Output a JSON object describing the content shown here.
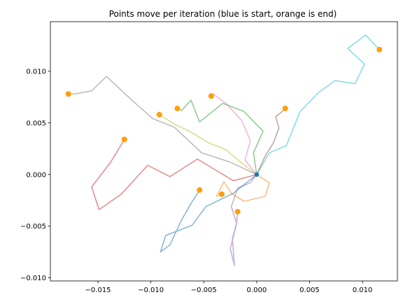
{
  "chart_data": {
    "type": "line",
    "title": "Points move per iteration (blue is start, orange is end)",
    "xlabel": "",
    "ylabel": "",
    "xlim": [
      -0.0195,
      0.0133
    ],
    "ylim": [
      -0.0103,
      0.0148
    ],
    "x_ticks": [
      -0.015,
      -0.01,
      -0.005,
      0.0,
      0.005,
      0.01
    ],
    "x_tick_labels": [
      "−0.015",
      "−0.010",
      "−0.005",
      "0.000",
      "0.005",
      "0.010"
    ],
    "y_ticks": [
      -0.01,
      -0.005,
      0.0,
      0.005,
      0.01
    ],
    "y_tick_labels": [
      "−0.010",
      "−0.005",
      "0.000",
      "0.005",
      "0.010"
    ],
    "grid": false,
    "start_marker_color": "#1f77b4",
    "end_marker_color": "#ff9e0a",
    "series": [
      {
        "color": "#7f7f7f",
        "points": [
          [
            0.0,
            0.0
          ],
          [
            -0.0025,
            0.0012
          ],
          [
            -0.0052,
            0.0021
          ],
          [
            -0.0078,
            0.0046
          ],
          [
            -0.0098,
            0.0054
          ],
          [
            -0.0118,
            0.0072
          ],
          [
            -0.0142,
            0.0095
          ],
          [
            -0.0156,
            0.0081
          ],
          [
            -0.0172,
            0.0078
          ],
          [
            -0.0178,
            0.0078
          ]
        ]
      },
      {
        "color": "#9467bd",
        "points": [
          [
            0.0,
            0.0
          ],
          [
            -0.0006,
            -0.0008
          ],
          [
            -0.0018,
            -0.0013
          ],
          [
            -0.0024,
            -0.0031
          ],
          [
            -0.0019,
            -0.0047
          ],
          [
            -0.0023,
            -0.0062
          ],
          [
            -0.0021,
            -0.0088
          ],
          [
            -0.0025,
            -0.0072
          ],
          [
            -0.0019,
            -0.0048
          ],
          [
            -0.0018,
            -0.0036
          ]
        ]
      },
      {
        "color": "#d62728",
        "points": [
          [
            0.0,
            0.0
          ],
          [
            -0.0022,
            -0.0006
          ],
          [
            -0.0056,
            0.0015
          ],
          [
            -0.0082,
            -0.0002
          ],
          [
            -0.0103,
            0.0009
          ],
          [
            -0.0128,
            -0.0019
          ],
          [
            -0.0149,
            -0.0034
          ],
          [
            -0.0156,
            -0.0012
          ],
          [
            -0.0138,
            0.0012
          ],
          [
            -0.0125,
            0.0034
          ]
        ]
      },
      {
        "color": "#2ca02c",
        "points": [
          [
            0.0,
            0.0
          ],
          [
            -0.0003,
            0.0021
          ],
          [
            0.0006,
            0.0042
          ],
          [
            -0.0012,
            0.0061
          ],
          [
            -0.0032,
            0.0069
          ],
          [
            -0.0054,
            0.0051
          ],
          [
            -0.0062,
            0.0072
          ],
          [
            -0.0071,
            0.0062
          ],
          [
            -0.0075,
            0.0064
          ]
        ]
      },
      {
        "color": "#17becf",
        "points": [
          [
            0.0,
            0.0
          ],
          [
            0.0012,
            0.0021
          ],
          [
            0.0028,
            0.0028
          ],
          [
            0.0041,
            0.0061
          ],
          [
            0.0058,
            0.0079
          ],
          [
            0.0074,
            0.0091
          ],
          [
            0.0093,
            0.0088
          ],
          [
            0.0102,
            0.0107
          ],
          [
            0.0086,
            0.0122
          ],
          [
            0.0103,
            0.0135
          ],
          [
            0.0116,
            0.0121
          ]
        ]
      },
      {
        "color": "#1f77b4",
        "points": [
          [
            0.0,
            0.0
          ],
          [
            -0.0022,
            -0.0018
          ],
          [
            -0.0048,
            -0.0031
          ],
          [
            -0.0061,
            -0.0049
          ],
          [
            -0.0086,
            -0.0059
          ],
          [
            -0.0091,
            -0.0075
          ],
          [
            -0.0082,
            -0.0068
          ],
          [
            -0.0071,
            -0.0044
          ],
          [
            -0.0062,
            -0.0028
          ],
          [
            -0.0054,
            -0.0015
          ]
        ]
      },
      {
        "color": "#ff7f0e",
        "points": [
          [
            0.0,
            0.0
          ],
          [
            0.0012,
            -0.0008
          ],
          [
            0.0008,
            -0.0021
          ],
          [
            -0.0012,
            -0.0026
          ],
          [
            -0.0024,
            -0.0018
          ],
          [
            -0.0031,
            -0.0007
          ],
          [
            -0.0038,
            -0.0021
          ],
          [
            -0.0033,
            -0.0019
          ]
        ]
      },
      {
        "color": "#e377c2",
        "points": [
          [
            0.0,
            0.0
          ],
          [
            -0.0011,
            0.0014
          ],
          [
            -0.0006,
            0.0033
          ],
          [
            -0.0014,
            0.0052
          ],
          [
            -0.0028,
            0.0068
          ],
          [
            -0.0041,
            0.0078
          ],
          [
            -0.0043,
            0.0076
          ]
        ]
      },
      {
        "color": "#8c564b",
        "points": [
          [
            0.0,
            0.0
          ],
          [
            0.0008,
            0.0018
          ],
          [
            0.0016,
            0.0031
          ],
          [
            0.0021,
            0.0045
          ],
          [
            0.0018,
            0.0056
          ],
          [
            0.0024,
            0.0061
          ],
          [
            0.0027,
            0.0064
          ]
        ]
      },
      {
        "color": "#bcbd22",
        "points": [
          [
            0.0,
            0.0
          ],
          [
            -0.0014,
            0.0011
          ],
          [
            -0.0029,
            0.0024
          ],
          [
            -0.0046,
            0.0031
          ],
          [
            -0.0062,
            0.0041
          ],
          [
            -0.0078,
            0.0049
          ],
          [
            -0.0092,
            0.0058
          ]
        ]
      }
    ]
  }
}
